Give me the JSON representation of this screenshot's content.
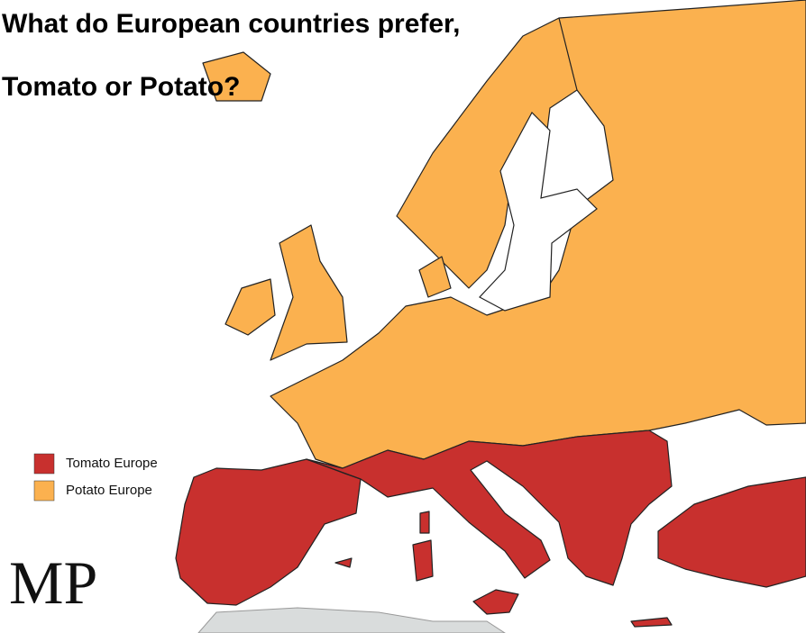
{
  "title": [
    "What do European countries prefer,",
    "Tomato or Potato?"
  ],
  "legend": [
    {
      "label": "Tomato Europe",
      "color": "#c8302e"
    },
    {
      "label": "Potato Europe",
      "color": "#fbb14f"
    }
  ],
  "logo": "MP"
}
